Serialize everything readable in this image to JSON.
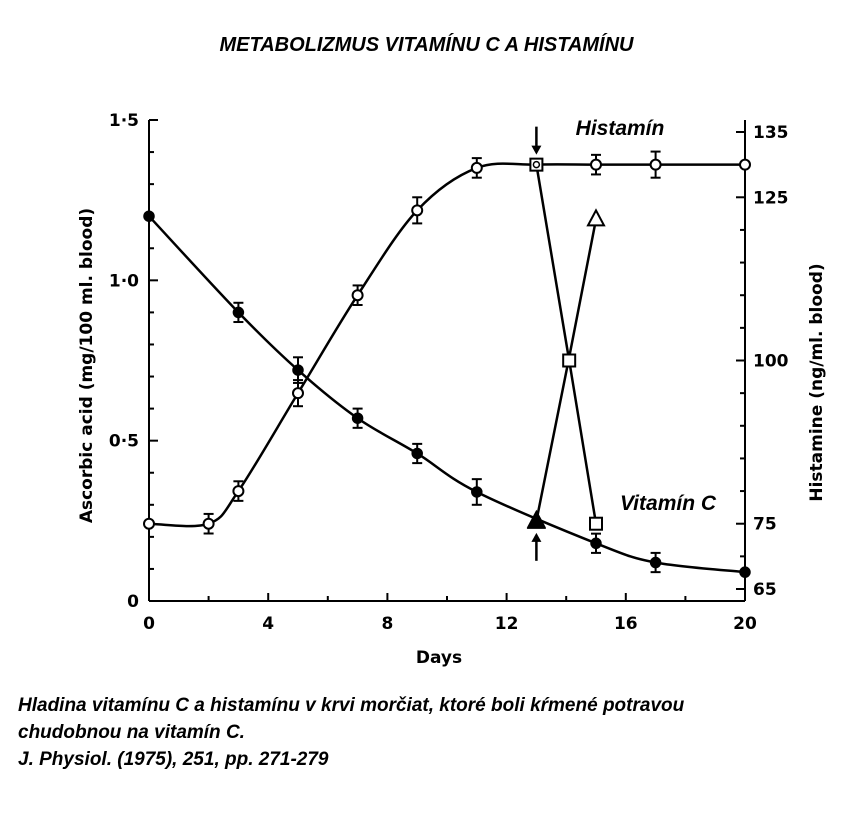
{
  "title": "METABOLIZMUS VITAMÍNU C A HISTAMÍNU",
  "caption": {
    "line1": "Hladina vitamínu C a histamínu v krvi morčiat, ktoré boli kŕmené potravou",
    "line2": "chudobnou na vitamín C.",
    "line3": "J. Physiol. (1975), 251, pp. 271-279"
  },
  "chart_data": {
    "type": "line",
    "xlabel": "Days",
    "ylabel_left": "Ascorbic acid (mg/100 ml. blood)",
    "ylabel_right": "Histamine (ng/ml. blood)",
    "xlim": [
      0,
      20
    ],
    "ylim_left": [
      0,
      1.5
    ],
    "ylim_right": [
      65,
      135
    ],
    "x_ticks": [
      "0",
      "4",
      "8",
      "12",
      "16",
      "20"
    ],
    "y_left_ticks": [
      {
        "label": "0",
        "value": 0
      },
      {
        "label": "0·5",
        "value": 0.5
      },
      {
        "label": "1·0",
        "value": 1.0
      },
      {
        "label": "1·5",
        "value": 1.5
      }
    ],
    "y_right_ticks": [
      {
        "label": "65",
        "value": 65
      },
      {
        "label": "75",
        "value": 75
      },
      {
        "label": "100",
        "value": 100
      },
      {
        "label": "125",
        "value": 125
      },
      {
        "label": "135",
        "value": 135
      }
    ],
    "grid": false,
    "series": [
      {
        "name": "Vitamín C",
        "axis": "left",
        "marker": "filled-circle",
        "x": [
          0,
          3,
          5,
          7,
          9,
          11,
          15,
          17,
          20
        ],
        "y": [
          1.2,
          0.9,
          0.72,
          0.57,
          0.46,
          0.34,
          0.18,
          0.12,
          0.09
        ],
        "err": [
          0,
          0.03,
          0.04,
          0.03,
          0.03,
          0.04,
          0.03,
          0.03,
          0
        ]
      },
      {
        "name": "Histamín",
        "axis": "right",
        "marker": "open-circle",
        "x": [
          0,
          2,
          3,
          5,
          7,
          9,
          11,
          13,
          15,
          17,
          20
        ],
        "y": [
          75,
          75,
          80,
          95,
          110,
          123,
          129.5,
          130,
          130,
          130,
          130
        ],
        "err": [
          0,
          1.5,
          1.5,
          2,
          1.5,
          2,
          1.5,
          0,
          1.5,
          2,
          0
        ]
      },
      {
        "name": "",
        "axis": "left",
        "marker": "filled-triangle-to-open-triangle",
        "x": [
          13,
          14.1,
          15
        ],
        "y": [
          0.25,
          0.76,
          1.19
        ]
      },
      {
        "name": "",
        "axis": "right",
        "marker": "open-square",
        "x": [
          13,
          14.1,
          15
        ],
        "y": [
          130,
          100,
          75
        ]
      }
    ],
    "annotations": [
      {
        "type": "arrow-down",
        "x": 13,
        "axis": "right",
        "target": 130
      },
      {
        "type": "arrow-up",
        "x": 13,
        "axis": "left",
        "target": 0.25
      }
    ]
  }
}
